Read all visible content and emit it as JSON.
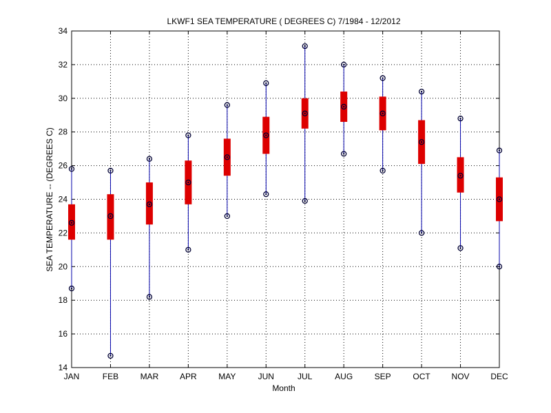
{
  "chart_data": {
    "type": "boxplot",
    "title": "LKWF1  SEA TEMPERATURE ( DEGREES C) 7/1984 - 12/2012",
    "xlabel": "Month",
    "ylabel": "SEA TEMPERATURE -- (DEGREES C)",
    "ylim": [
      14,
      34
    ],
    "yticks": [
      14,
      16,
      18,
      20,
      22,
      24,
      26,
      28,
      30,
      32,
      34
    ],
    "grid": true,
    "categories": [
      "JAN",
      "FEB",
      "MAR",
      "APR",
      "MAY",
      "JUN",
      "JUL",
      "AUG",
      "SEP",
      "OCT",
      "NOV",
      "DEC"
    ],
    "min": [
      18.7,
      14.7,
      18.2,
      21.0,
      23.0,
      24.3,
      23.9,
      26.7,
      25.7,
      22.0,
      21.1,
      20.0
    ],
    "q1": [
      21.6,
      21.6,
      22.5,
      23.7,
      25.4,
      26.7,
      28.2,
      28.6,
      28.1,
      26.1,
      24.4,
      22.7
    ],
    "median": [
      22.6,
      23.0,
      23.7,
      25.0,
      26.5,
      27.8,
      29.1,
      29.5,
      29.1,
      27.4,
      25.4,
      24.0
    ],
    "q3": [
      23.7,
      24.3,
      25.0,
      26.3,
      27.6,
      28.9,
      30.0,
      30.4,
      30.1,
      28.7,
      26.5,
      25.3
    ],
    "max": [
      25.8,
      25.7,
      26.4,
      27.8,
      29.6,
      30.9,
      33.1,
      32.0,
      31.2,
      30.4,
      28.8,
      26.9
    ],
    "colors": {
      "whisker": "#0000aa",
      "box": "#dd0000",
      "marker": "#000033",
      "grid": "#000000"
    }
  }
}
